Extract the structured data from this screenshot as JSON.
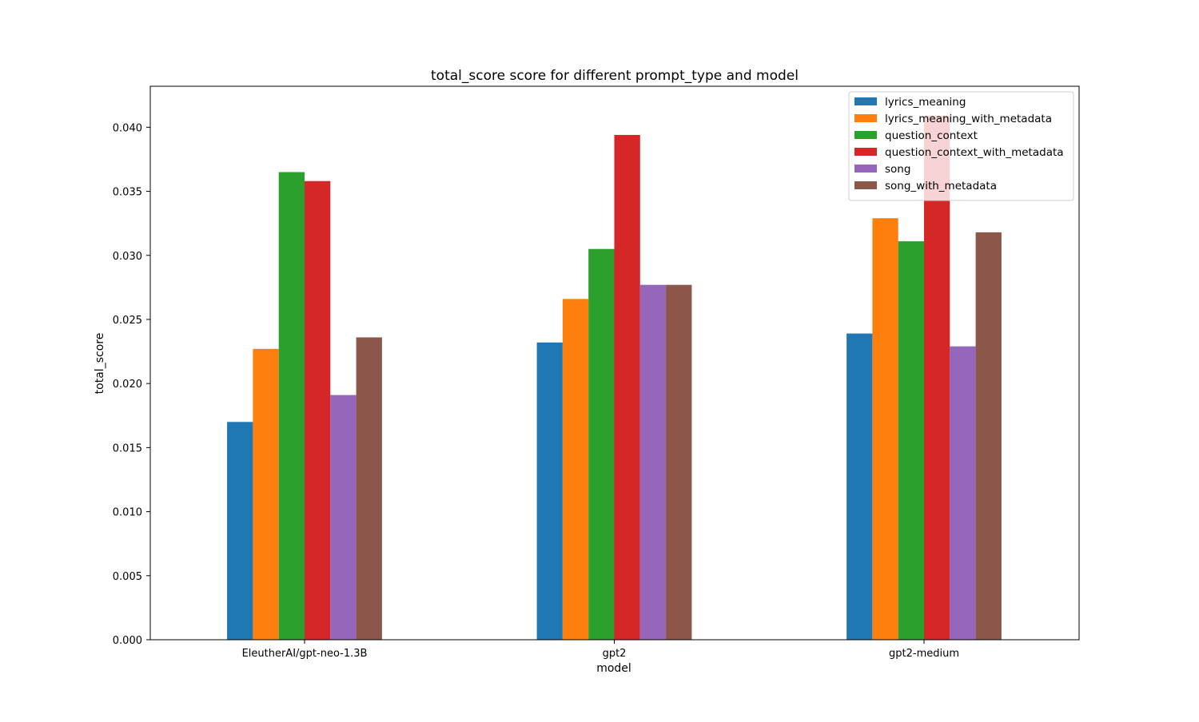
{
  "chart_data": {
    "type": "bar",
    "title": "total_score score for different prompt_type and model",
    "xlabel": "model",
    "ylabel": "total_score",
    "ylim": [
      0,
      0.0432
    ],
    "yticks": [
      0.0,
      0.005,
      0.01,
      0.015,
      0.02,
      0.025,
      0.03,
      0.035,
      0.04
    ],
    "ytick_labels": [
      "0.000",
      "0.005",
      "0.010",
      "0.015",
      "0.020",
      "0.025",
      "0.030",
      "0.035",
      "0.040"
    ],
    "categories": [
      "EleutherAI/gpt-neo-1.3B",
      "gpt2",
      "gpt2-medium"
    ],
    "legend_position": "top-right",
    "series": [
      {
        "name": "lyrics_meaning",
        "color": "#1f77b4",
        "values": [
          0.017,
          0.0232,
          0.0239
        ]
      },
      {
        "name": "lyrics_meaning_with_metadata",
        "color": "#ff7f0e",
        "values": [
          0.0227,
          0.0266,
          0.0329
        ]
      },
      {
        "name": "question_context",
        "color": "#2ca02c",
        "values": [
          0.0365,
          0.0305,
          0.0311
        ]
      },
      {
        "name": "question_context_with_metadata",
        "color": "#d62728",
        "values": [
          0.0358,
          0.0394,
          0.0409
        ]
      },
      {
        "name": "song",
        "color": "#9467bd",
        "values": [
          0.0191,
          0.0277,
          0.0229
        ]
      },
      {
        "name": "song_with_metadata",
        "color": "#8c564b",
        "values": [
          0.0236,
          0.0277,
          0.0318
        ]
      }
    ]
  }
}
